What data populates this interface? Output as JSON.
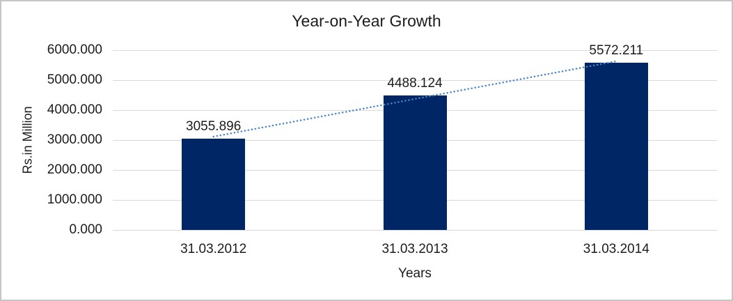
{
  "chart_data": {
    "type": "bar",
    "title": "Year-on-Year Growth",
    "xlabel": "Years",
    "ylabel": "Rs.in Million",
    "categories": [
      "31.03.2012",
      "31.03.2013",
      "31.03.2014"
    ],
    "values": [
      3055.896,
      4488.124,
      5572.211
    ],
    "data_labels": [
      "3055.896",
      "4488.124",
      "5572.211"
    ],
    "ylim": [
      0,
      6000
    ],
    "ytick_step": 1000,
    "ytick_labels": [
      "0.000",
      "1000.000",
      "2000.000",
      "3000.000",
      "4000.000",
      "5000.000",
      "6000.000"
    ],
    "grid": true,
    "legend": "none",
    "bar_color": "#002666",
    "gridline_color": "#d9d9d9",
    "trendline": {
      "type": "linear",
      "style": "dotted",
      "color": "#4a86c9"
    }
  }
}
